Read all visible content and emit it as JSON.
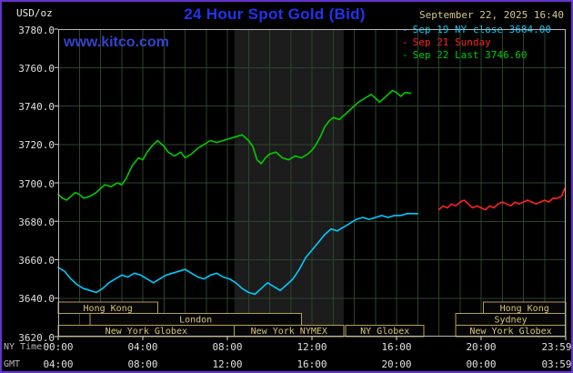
{
  "header": {
    "unit_label": "USD/oz",
    "title": "24 Hour Spot Gold (Bid)",
    "title_color": "#2233ee",
    "datetime": "September 22, 2025 16:40",
    "datetime_color": "#d6c690",
    "watermark": "www.kitco.com",
    "watermark_color": "#3344cc"
  },
  "legend": [
    {
      "marker": "-",
      "label": "Sep 19 NY close 3684.00",
      "color": "#00ccff"
    },
    {
      "marker": "-",
      "label": "Sep 21 Sunday",
      "color": "#ff2222"
    },
    {
      "marker": "-",
      "label": "Sep 22 Last 3746.60",
      "color": "#00cc00"
    }
  ],
  "axes": {
    "ny_time_label": "NY Time",
    "gmt_label": "GMT",
    "ny_ticks": [
      "00:00",
      "04:00",
      "08:00",
      "12:00",
      "16:00",
      "20:00",
      "23:59"
    ],
    "gmt_ticks": [
      "04:00",
      "08:00",
      "12:00",
      "16:00",
      "20:00",
      "00:00",
      "03:59"
    ],
    "y_ticks": [
      "3780.0",
      "3760.0",
      "3740.0",
      "3720.0",
      "3700.0",
      "3680.0",
      "3660.0",
      "3640.0",
      "3620.0"
    ]
  },
  "chart_data": {
    "type": "line",
    "title": "24 Hour Spot Gold (Bid)",
    "ylabel": "USD/oz",
    "x_unit": "hours, NY time",
    "xlim_hours": [
      0,
      24
    ],
    "ylim": [
      3620,
      3780
    ],
    "y_tick_step": 20,
    "x_tick_hours": [
      0,
      4,
      8,
      12,
      16,
      20,
      24
    ],
    "grid": true,
    "legend_position": "top-right",
    "nymex_highlight_hours": [
      8.33,
      13.5
    ],
    "colors": {
      "background": "#000000",
      "frame_border": "#6633cc",
      "plot_border": "#b8b8b8",
      "grid": "#2c452c",
      "session_band": "#1c1c1c",
      "session_border": "#b89d55",
      "session_text": "#d8c478",
      "axis_text": "#d8d8d8"
    },
    "series": [
      {
        "id": "sep19",
        "name": "Sep 19 NY close",
        "last_value": 3684.0,
        "color": "#00ccff",
        "points": [
          [
            0,
            3656
          ],
          [
            0.3,
            3654
          ],
          [
            0.6,
            3650
          ],
          [
            0.9,
            3647
          ],
          [
            1.2,
            3645
          ],
          [
            1.5,
            3644
          ],
          [
            1.8,
            3643
          ],
          [
            2.1,
            3645
          ],
          [
            2.4,
            3648
          ],
          [
            2.7,
            3650
          ],
          [
            3,
            3652
          ],
          [
            3.3,
            3651
          ],
          [
            3.6,
            3653
          ],
          [
            3.9,
            3652
          ],
          [
            4.2,
            3650
          ],
          [
            4.5,
            3648
          ],
          [
            4.8,
            3650
          ],
          [
            5.1,
            3652
          ],
          [
            5.4,
            3653
          ],
          [
            5.7,
            3654
          ],
          [
            6,
            3655
          ],
          [
            6.3,
            3653
          ],
          [
            6.6,
            3651
          ],
          [
            6.9,
            3650
          ],
          [
            7.2,
            3652
          ],
          [
            7.5,
            3653
          ],
          [
            7.8,
            3651
          ],
          [
            8.1,
            3650
          ],
          [
            8.4,
            3648
          ],
          [
            8.7,
            3645
          ],
          [
            9,
            3643
          ],
          [
            9.3,
            3642
          ],
          [
            9.6,
            3645
          ],
          [
            9.9,
            3648
          ],
          [
            10.2,
            3646
          ],
          [
            10.5,
            3644
          ],
          [
            10.8,
            3647
          ],
          [
            11.1,
            3650
          ],
          [
            11.4,
            3655
          ],
          [
            11.7,
            3661
          ],
          [
            12,
            3665
          ],
          [
            12.3,
            3669
          ],
          [
            12.6,
            3673
          ],
          [
            12.9,
            3676
          ],
          [
            13.2,
            3675
          ],
          [
            13.5,
            3677
          ],
          [
            13.8,
            3679
          ],
          [
            14.1,
            3681
          ],
          [
            14.4,
            3682
          ],
          [
            14.7,
            3681
          ],
          [
            15,
            3682
          ],
          [
            15.3,
            3683
          ],
          [
            15.6,
            3682
          ],
          [
            15.9,
            3683
          ],
          [
            16.2,
            3683
          ],
          [
            16.5,
            3684
          ],
          [
            17,
            3684
          ]
        ]
      },
      {
        "id": "sep21",
        "name": "Sep 21 Sunday",
        "color": "#ff2222",
        "points": [
          [
            18,
            3686
          ],
          [
            18.2,
            3688
          ],
          [
            18.4,
            3687
          ],
          [
            18.6,
            3689
          ],
          [
            18.8,
            3688
          ],
          [
            19,
            3690
          ],
          [
            19.2,
            3691
          ],
          [
            19.4,
            3689
          ],
          [
            19.6,
            3687
          ],
          [
            19.8,
            3688
          ],
          [
            20,
            3687
          ],
          [
            20.2,
            3686
          ],
          [
            20.4,
            3688
          ],
          [
            20.6,
            3687
          ],
          [
            20.8,
            3689
          ],
          [
            21,
            3690
          ],
          [
            21.2,
            3689
          ],
          [
            21.4,
            3688
          ],
          [
            21.6,
            3690
          ],
          [
            21.8,
            3689
          ],
          [
            22,
            3690
          ],
          [
            22.2,
            3691
          ],
          [
            22.4,
            3690
          ],
          [
            22.6,
            3689
          ],
          [
            22.8,
            3690
          ],
          [
            23,
            3691
          ],
          [
            23.2,
            3690
          ],
          [
            23.4,
            3692
          ],
          [
            23.6,
            3692
          ],
          [
            23.8,
            3693
          ],
          [
            23.95,
            3697
          ]
        ]
      },
      {
        "id": "sep22",
        "name": "Sep 22 Last",
        "last_value": 3746.6,
        "color": "#00cc00",
        "points": [
          [
            0,
            3694
          ],
          [
            0.2,
            3692
          ],
          [
            0.4,
            3691
          ],
          [
            0.6,
            3693
          ],
          [
            0.8,
            3695
          ],
          [
            1,
            3694
          ],
          [
            1.2,
            3692
          ],
          [
            1.5,
            3693
          ],
          [
            1.8,
            3695
          ],
          [
            2,
            3697
          ],
          [
            2.2,
            3699
          ],
          [
            2.5,
            3698
          ],
          [
            2.8,
            3700
          ],
          [
            3,
            3699
          ],
          [
            3.2,
            3702
          ],
          [
            3.5,
            3709
          ],
          [
            3.8,
            3713
          ],
          [
            4,
            3712
          ],
          [
            4.2,
            3716
          ],
          [
            4.5,
            3720
          ],
          [
            4.7,
            3722
          ],
          [
            5,
            3719
          ],
          [
            5.2,
            3716
          ],
          [
            5.5,
            3714
          ],
          [
            5.8,
            3716
          ],
          [
            6,
            3713
          ],
          [
            6.3,
            3715
          ],
          [
            6.6,
            3718
          ],
          [
            6.9,
            3720
          ],
          [
            7.2,
            3722
          ],
          [
            7.5,
            3721
          ],
          [
            7.8,
            3722
          ],
          [
            8.1,
            3723
          ],
          [
            8.4,
            3724
          ],
          [
            8.7,
            3725
          ],
          [
            9,
            3722
          ],
          [
            9.2,
            3719
          ],
          [
            9.4,
            3712
          ],
          [
            9.6,
            3710
          ],
          [
            9.8,
            3713
          ],
          [
            10,
            3715
          ],
          [
            10.3,
            3716
          ],
          [
            10.6,
            3713
          ],
          [
            10.9,
            3712
          ],
          [
            11.2,
            3714
          ],
          [
            11.5,
            3713
          ],
          [
            11.8,
            3715
          ],
          [
            12,
            3717
          ],
          [
            12.2,
            3720
          ],
          [
            12.4,
            3724
          ],
          [
            12.6,
            3729
          ],
          [
            12.8,
            3732
          ],
          [
            13,
            3734
          ],
          [
            13.3,
            3733
          ],
          [
            13.6,
            3736
          ],
          [
            13.9,
            3739
          ],
          [
            14.2,
            3742
          ],
          [
            14.5,
            3744
          ],
          [
            14.8,
            3746
          ],
          [
            15,
            3744
          ],
          [
            15.2,
            3742
          ],
          [
            15.5,
            3745
          ],
          [
            15.8,
            3748
          ],
          [
            16,
            3747
          ],
          [
            16.2,
            3745
          ],
          [
            16.4,
            3747
          ],
          [
            16.67,
            3746.6
          ]
        ]
      }
    ],
    "sessions": [
      {
        "row": 0,
        "label": "Hong Kong",
        "start": 0.0,
        "end": 4.7
      },
      {
        "row": 0,
        "label": "Hong Kong",
        "start": 20.1,
        "end": 24.0
      },
      {
        "row": 1,
        "label": "London",
        "start": 1.5,
        "end": 11.5
      },
      {
        "row": 1,
        "label": "Sydney",
        "start": 18.8,
        "end": 24.0
      },
      {
        "row": 2,
        "label": "New York Globex",
        "start": 0.0,
        "end": 8.33
      },
      {
        "row": 2,
        "label": "New York NYMEX",
        "start": 8.33,
        "end": 13.5
      },
      {
        "row": 2,
        "label": "NY Globex",
        "start": 13.6,
        "end": 17.3
      },
      {
        "row": 2,
        "label": "New York Globex",
        "start": 18.8,
        "end": 24.0
      }
    ]
  }
}
